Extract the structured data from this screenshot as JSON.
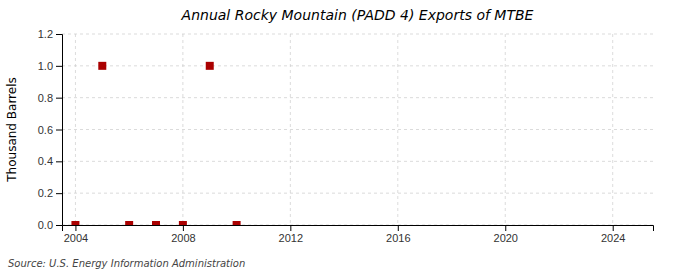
{
  "chart_data": {
    "type": "scatter",
    "title": "Annual Rocky Mountain (PADD 4) Exports of MTBE",
    "ylabel": "Thousand Barrels",
    "source": "Source: U.S. Energy Information Administration",
    "x": [
      2004,
      2005,
      2006,
      2007,
      2008,
      2009,
      2010
    ],
    "values": [
      0.0,
      1.0,
      0.0,
      0.0,
      0.0,
      1.0,
      0.0
    ],
    "color": "#aa0000",
    "marker": "square",
    "xlim": [
      2003.5,
      2025.5
    ],
    "xticks": [
      2004,
      2008,
      2012,
      2016,
      2020,
      2024
    ],
    "ylim": [
      0.0,
      1.2
    ],
    "yticks": [
      {
        "value": 0.0,
        "label": "0.0"
      },
      0.2,
      0.4,
      0.6,
      0.8,
      {
        "value": 1.0,
        "label": "1.0"
      },
      1.2
    ],
    "grid": true
  }
}
